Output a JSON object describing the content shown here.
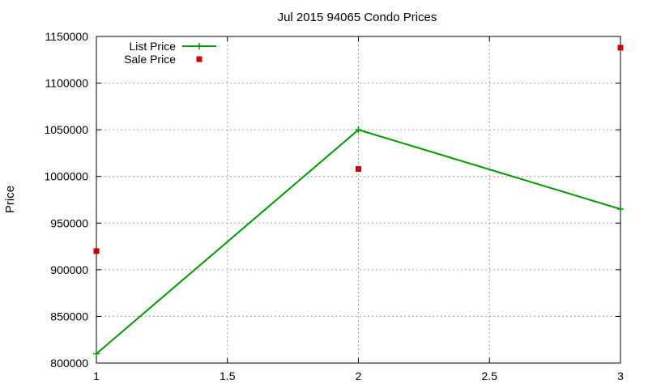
{
  "chart_data": {
    "type": "line",
    "title": "Jul 2015 94065 Condo Prices",
    "xlabel": "",
    "ylabel": "Price",
    "xlim": [
      1,
      3
    ],
    "ylim": [
      800000,
      1150000
    ],
    "x_ticks": [
      1,
      1.5,
      2,
      2.5,
      3
    ],
    "x_tick_labels": [
      "1",
      "1.5",
      "2",
      "2.5",
      "3"
    ],
    "y_ticks": [
      800000,
      850000,
      900000,
      950000,
      1000000,
      1050000,
      1100000,
      1150000
    ],
    "y_tick_labels": [
      "800000",
      "850000",
      "900000",
      "950000",
      "1000000",
      "1050000",
      "1100000",
      "1150000"
    ],
    "grid": true,
    "legend_position": "top-left",
    "series": [
      {
        "name": "List Price",
        "style": "linespoints",
        "marker": "plus",
        "color": "#009900",
        "points": [
          [
            1,
            810000
          ],
          [
            2,
            1050000
          ],
          [
            3,
            965000
          ]
        ]
      },
      {
        "name": "Sale Price",
        "style": "points",
        "marker": "square",
        "color": "#cc0000",
        "points": [
          [
            1,
            920000
          ],
          [
            2,
            1008000
          ],
          [
            3,
            1138000
          ]
        ]
      }
    ]
  }
}
